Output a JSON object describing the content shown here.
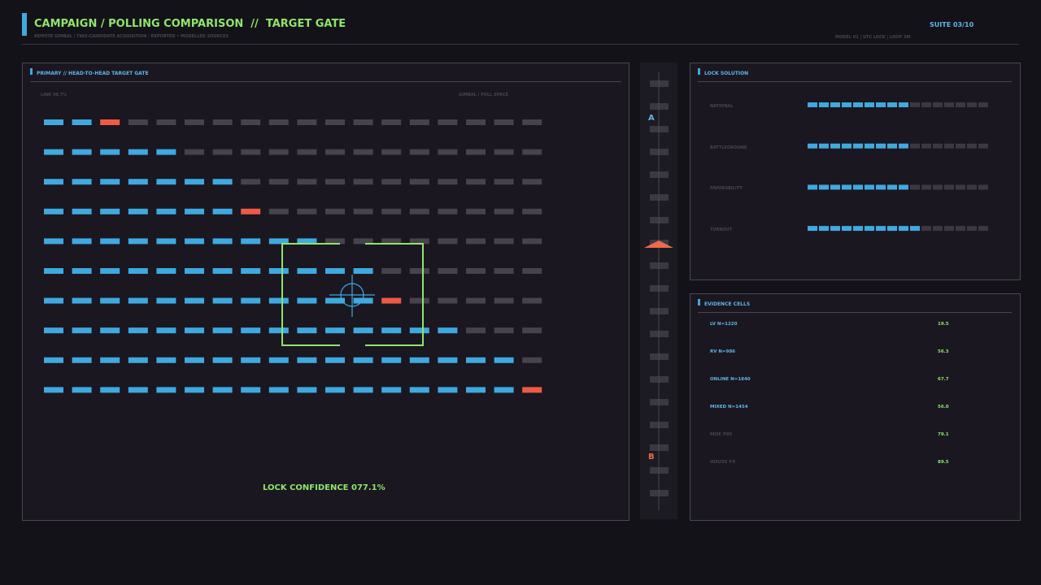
{
  "header": {
    "title": "CAMPAIGN / POLLING COMPARISON  //  TARGET GATE",
    "subtitle": "REMOTE GIMBAL / TWO-CANDIDATE ACQUISITION / REPORTED • MODELLED SOURCES",
    "suite": "SUITE 03/10",
    "status": "MODEL 01 | UTC LOCK | LOOP 3M"
  },
  "gate": {
    "title": "PRIMARY // HEAD-TO-HEAD TARGET GATE",
    "link": "LINK 98.7%",
    "space": "GIMBAL / POLL SPACE",
    "confidence": "LOCK CONFIDENCE 077.1%",
    "rows": [
      {
        "lit": 2,
        "alert": true
      },
      {
        "lit": 5,
        "alert": false
      },
      {
        "lit": 7,
        "alert": false
      },
      {
        "lit": 7,
        "alert": true
      },
      {
        "lit": 10,
        "alert": false
      },
      {
        "lit": 12,
        "alert": false
      },
      {
        "lit": 12,
        "alert": true
      },
      {
        "lit": 15,
        "alert": false
      },
      {
        "lit": 17,
        "alert": false
      },
      {
        "lit": 17,
        "alert": true
      }
    ]
  },
  "scale": {
    "top": "A",
    "bottom": "B"
  },
  "lock": {
    "title": "LOCK SOLUTION",
    "rows": [
      {
        "label": "NATIONAL",
        "lit": 9
      },
      {
        "label": "BATTLEGROUND",
        "lit": 9
      },
      {
        "label": "FAVORABILITY",
        "lit": 9
      },
      {
        "label": "TURNOUT",
        "lit": 10
      }
    ]
  },
  "evidence": {
    "title": "EVIDENCE CELLS",
    "rows": [
      {
        "label": "LV N=1220",
        "value": "19.5",
        "active": true
      },
      {
        "label": "RV N=986",
        "value": "56.3",
        "active": true
      },
      {
        "label": "ONLINE N=1840",
        "value": "67.7",
        "active": true
      },
      {
        "label": "MIXED N=1454",
        "value": "56.0",
        "active": true
      },
      {
        "label": "MOE P95",
        "value": "79.1",
        "active": false
      },
      {
        "label": "HOUSE FX",
        "value": "89.5",
        "active": false
      }
    ]
  }
}
